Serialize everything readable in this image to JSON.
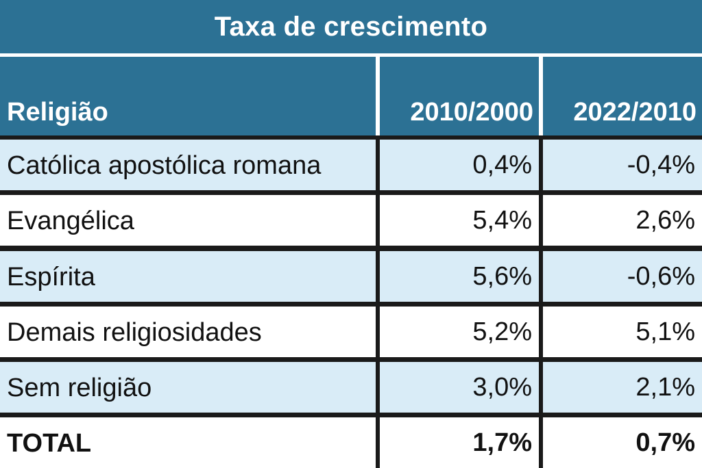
{
  "chart_data": {
    "type": "table",
    "title": "Taxa de crescimento",
    "columns": [
      "Religião",
      "2010/2000",
      "2022/2010"
    ],
    "rows": [
      {
        "label": "Católica apostólica romana",
        "v1": "0,4%",
        "v2": "-0,4%"
      },
      {
        "label": "Evangélica",
        "v1": "5,4%",
        "v2": "2,6%"
      },
      {
        "label": "Espírita",
        "v1": "5,6%",
        "v2": "-0,6%"
      },
      {
        "label": "Demais religiosidades",
        "v1": "5,2%",
        "v2": "5,1%"
      },
      {
        "label": "Sem religião",
        "v1": "3,0%",
        "v2": "2,1%"
      }
    ],
    "total": {
      "label": "TOTAL",
      "v1": "1,7%",
      "v2": "0,7%"
    }
  },
  "colors": {
    "header": "#2c7194",
    "band": "#d9ecf7",
    "white": "#ffffff",
    "border": "#1a1a1a"
  }
}
